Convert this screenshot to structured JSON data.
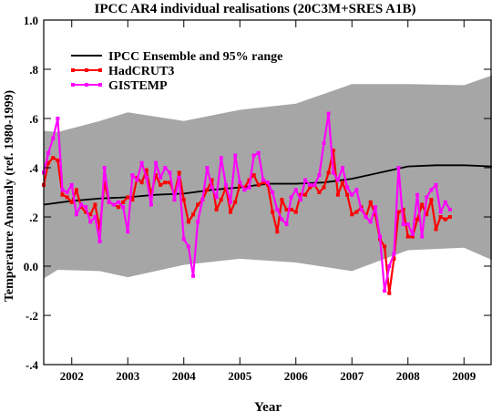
{
  "chart_data": {
    "type": "line",
    "title": "IPCC AR4 individual realisations (20C3M+SRES A1B)",
    "xlabel": "Year",
    "ylabel": "Temperature Anomaly (ref. 1980-1999)",
    "xlim": [
      2001.5,
      2009.5
    ],
    "ylim": [
      -0.4,
      1.0
    ],
    "x_ticks": [
      2002,
      2003,
      2004,
      2005,
      2006,
      2007,
      2008,
      2009
    ],
    "x_tick_labels": [
      "2002",
      "2003",
      "2004",
      "2005",
      "2006",
      "2007",
      "2008",
      "2009"
    ],
    "y_ticks": [
      -0.4,
      -0.2,
      0.0,
      0.2,
      0.4,
      0.6,
      0.8,
      1.0
    ],
    "y_tick_labels": [
      "-.4",
      "-.2",
      "0.0",
      ".2",
      ".4",
      ".6",
      ".8",
      "1.0"
    ],
    "grid": false,
    "legend_position": "top-left",
    "band": {
      "color": "#a6a6a6",
      "x": [
        2001.5,
        2001.75,
        2002.5,
        2003.0,
        2004.0,
        2005.0,
        2006.0,
        2007.0,
        2008.0,
        2009.0,
        2009.5
      ],
      "upper": [
        0.55,
        0.545,
        0.59,
        0.625,
        0.59,
        0.635,
        0.66,
        0.74,
        0.74,
        0.735,
        0.775
      ],
      "lower": [
        -0.05,
        -0.015,
        -0.02,
        -0.045,
        0.005,
        0.03,
        0.015,
        -0.02,
        0.065,
        0.075,
        0.025
      ]
    },
    "series": [
      {
        "name": "IPCC Ensemble and 95% range",
        "color": "#000000",
        "marker": false,
        "x": [
          2001.5,
          2002.0,
          2002.5,
          2003.0,
          2003.5,
          2004.0,
          2004.5,
          2005.0,
          2005.5,
          2006.0,
          2006.5,
          2007.0,
          2007.5,
          2008.0,
          2008.5,
          2009.0,
          2009.5
        ],
        "y": [
          0.25,
          0.265,
          0.275,
          0.28,
          0.29,
          0.295,
          0.31,
          0.32,
          0.335,
          0.335,
          0.34,
          0.355,
          0.38,
          0.405,
          0.41,
          0.41,
          0.405
        ]
      },
      {
        "name": "HadCRUT3",
        "color": "#ff0000",
        "marker": true,
        "x": [
          2001.5,
          2001.583,
          2001.667,
          2001.75,
          2001.833,
          2001.917,
          2002.0,
          2002.083,
          2002.167,
          2002.25,
          2002.333,
          2002.417,
          2002.5,
          2002.583,
          2002.667,
          2002.75,
          2002.833,
          2002.917,
          2003.0,
          2003.083,
          2003.167,
          2003.25,
          2003.333,
          2003.417,
          2003.5,
          2003.583,
          2003.667,
          2003.75,
          2003.833,
          2003.917,
          2004.0,
          2004.083,
          2004.167,
          2004.25,
          2004.333,
          2004.417,
          2004.5,
          2004.583,
          2004.667,
          2004.75,
          2004.833,
          2004.917,
          2005.0,
          2005.083,
          2005.167,
          2005.25,
          2005.333,
          2005.417,
          2005.5,
          2005.583,
          2005.667,
          2005.75,
          2005.833,
          2005.917,
          2006.0,
          2006.083,
          2006.167,
          2006.25,
          2006.333,
          2006.417,
          2006.5,
          2006.583,
          2006.667,
          2006.75,
          2006.833,
          2006.917,
          2007.0,
          2007.083,
          2007.167,
          2007.25,
          2007.333,
          2007.417,
          2007.5,
          2007.583,
          2007.667,
          2007.75,
          2007.833,
          2007.917,
          2008.0,
          2008.083,
          2008.167,
          2008.25,
          2008.333,
          2008.417,
          2008.5,
          2008.583,
          2008.667,
          2008.75
        ],
        "y": [
          0.33,
          0.42,
          0.44,
          0.43,
          0.29,
          0.28,
          0.26,
          0.31,
          0.24,
          0.22,
          0.21,
          0.25,
          0.15,
          0.34,
          0.26,
          0.25,
          0.24,
          0.26,
          0.28,
          0.27,
          0.36,
          0.34,
          0.39,
          0.29,
          0.37,
          0.33,
          0.34,
          0.34,
          0.29,
          0.38,
          0.27,
          0.18,
          0.21,
          0.25,
          0.27,
          0.31,
          0.35,
          0.23,
          0.27,
          0.32,
          0.22,
          0.26,
          0.33,
          0.32,
          0.35,
          0.37,
          0.33,
          0.34,
          0.33,
          0.22,
          0.14,
          0.27,
          0.23,
          0.23,
          0.22,
          0.29,
          0.29,
          0.32,
          0.33,
          0.3,
          0.32,
          0.38,
          0.47,
          0.29,
          0.34,
          0.29,
          0.21,
          0.22,
          0.24,
          0.2,
          0.26,
          0.21,
          0.11,
          0.08,
          -0.11,
          0.03,
          0.22,
          0.23,
          0.12,
          0.12,
          0.19,
          0.25,
          0.21,
          0.27,
          0.15,
          0.2,
          0.19,
          0.2
        ]
      },
      {
        "name": "GISTEMP",
        "color": "#ff00ff",
        "marker": true,
        "x": [
          2001.5,
          2001.583,
          2001.667,
          2001.75,
          2001.833,
          2001.917,
          2002.0,
          2002.083,
          2002.167,
          2002.25,
          2002.333,
          2002.417,
          2002.5,
          2002.583,
          2002.667,
          2002.75,
          2002.833,
          2002.917,
          2003.0,
          2003.083,
          2003.167,
          2003.25,
          2003.333,
          2003.417,
          2003.5,
          2003.583,
          2003.667,
          2003.75,
          2003.833,
          2003.917,
          2004.0,
          2004.083,
          2004.167,
          2004.25,
          2004.333,
          2004.417,
          2004.5,
          2004.583,
          2004.667,
          2004.75,
          2004.833,
          2004.917,
          2005.0,
          2005.083,
          2005.167,
          2005.25,
          2005.333,
          2005.417,
          2005.5,
          2005.583,
          2005.667,
          2005.75,
          2005.833,
          2005.917,
          2006.0,
          2006.083,
          2006.167,
          2006.25,
          2006.333,
          2006.417,
          2006.5,
          2006.583,
          2006.667,
          2006.75,
          2006.833,
          2006.917,
          2007.0,
          2007.083,
          2007.167,
          2007.25,
          2007.333,
          2007.417,
          2007.5,
          2007.583,
          2007.667,
          2007.75,
          2007.833,
          2007.917,
          2008.0,
          2008.083,
          2008.167,
          2008.25,
          2008.333,
          2008.417,
          2008.5,
          2008.583,
          2008.667,
          2008.75
        ],
        "y": [
          0.38,
          0.46,
          0.52,
          0.6,
          0.31,
          0.3,
          0.33,
          0.21,
          0.25,
          0.24,
          0.18,
          0.2,
          0.1,
          0.4,
          0.26,
          0.25,
          0.26,
          0.24,
          0.14,
          0.37,
          0.35,
          0.42,
          0.36,
          0.25,
          0.42,
          0.36,
          0.4,
          0.38,
          0.27,
          0.36,
          0.11,
          0.08,
          -0.04,
          0.18,
          0.27,
          0.4,
          0.32,
          0.28,
          0.44,
          0.33,
          0.26,
          0.45,
          0.34,
          0.31,
          0.32,
          0.45,
          0.46,
          0.35,
          0.34,
          0.3,
          0.23,
          0.19,
          0.17,
          0.28,
          0.31,
          0.27,
          0.35,
          0.33,
          0.33,
          0.37,
          0.5,
          0.62,
          0.38,
          0.35,
          0.4,
          0.32,
          0.29,
          0.31,
          0.23,
          0.2,
          0.18,
          0.24,
          0.12,
          -0.1,
          0.0,
          0.05,
          0.4,
          0.17,
          0.17,
          0.13,
          0.29,
          0.12,
          0.28,
          0.31,
          0.33,
          0.22,
          0.26,
          0.23
        ]
      }
    ]
  }
}
